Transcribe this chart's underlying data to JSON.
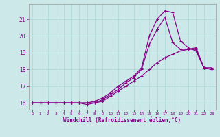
{
  "xlabel": "Windchill (Refroidissement éolien,°C)",
  "background_color": "#cce8e8",
  "line_color": "#880088",
  "xlim": [
    -0.5,
    23.5
  ],
  "ylim": [
    15.6,
    21.9
  ],
  "yticks": [
    16,
    17,
    18,
    19,
    20,
    21
  ],
  "xticks": [
    0,
    1,
    2,
    3,
    4,
    5,
    6,
    7,
    8,
    9,
    10,
    11,
    12,
    13,
    14,
    15,
    16,
    17,
    18,
    19,
    20,
    21,
    22,
    23
  ],
  "curve1_x": [
    0,
    1,
    2,
    3,
    4,
    5,
    6,
    7,
    8,
    9,
    10,
    11,
    12,
    13,
    14,
    15,
    16,
    17,
    18,
    19,
    20,
    21,
    22,
    23
  ],
  "curve1_y": [
    16.0,
    16.0,
    16.0,
    16.0,
    16.0,
    16.0,
    16.0,
    16.0,
    16.1,
    16.3,
    16.6,
    17.0,
    17.3,
    17.6,
    18.1,
    20.0,
    21.0,
    21.5,
    21.4,
    19.7,
    19.3,
    19.1,
    18.1,
    18.0
  ],
  "curve2_x": [
    0,
    1,
    2,
    3,
    4,
    5,
    6,
    7,
    8,
    9,
    10,
    11,
    12,
    13,
    14,
    15,
    16,
    17,
    18,
    19,
    20,
    21,
    22,
    23
  ],
  "curve2_y": [
    16.0,
    16.0,
    16.0,
    16.0,
    16.0,
    16.0,
    16.0,
    15.9,
    16.0,
    16.2,
    16.5,
    16.8,
    17.2,
    17.5,
    18.0,
    19.5,
    20.4,
    21.1,
    19.6,
    19.2,
    19.2,
    19.3,
    18.1,
    18.1
  ],
  "curve3_x": [
    0,
    1,
    2,
    3,
    4,
    5,
    6,
    7,
    8,
    9,
    10,
    11,
    12,
    13,
    14,
    15,
    16,
    17,
    18,
    19,
    20,
    21,
    22,
    23
  ],
  "curve3_y": [
    16.0,
    16.0,
    16.0,
    16.0,
    16.0,
    16.0,
    16.0,
    16.0,
    16.0,
    16.1,
    16.4,
    16.7,
    17.0,
    17.3,
    17.6,
    18.0,
    18.4,
    18.7,
    18.9,
    19.1,
    19.2,
    19.2,
    18.1,
    18.0
  ]
}
